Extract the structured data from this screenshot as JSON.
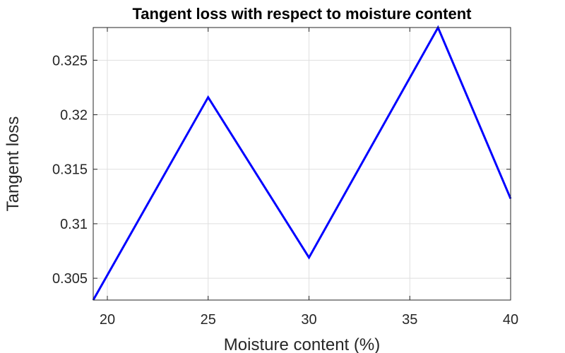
{
  "chart_data": {
    "type": "line",
    "title": "Tangent loss with respect to moisture content",
    "xlabel": "Moisture content (%)",
    "ylabel": "Tangent loss",
    "xlim": [
      19.3,
      40
    ],
    "ylim": [
      0.303,
      0.328
    ],
    "xticks": [
      "20",
      "25",
      "30",
      "35",
      "40"
    ],
    "xtick_values": [
      20,
      25,
      30,
      35,
      40
    ],
    "yticks": [
      "0.305",
      "0.31",
      "0.315",
      "0.32",
      "0.325"
    ],
    "ytick_values": [
      0.305,
      0.31,
      0.315,
      0.32,
      0.325
    ],
    "grid": true,
    "series": [
      {
        "color": "#0000ff",
        "x": [
          19.3,
          25,
          30,
          36.4,
          40
        ],
        "y": [
          0.303,
          0.3216,
          0.3069,
          0.328,
          0.3123
        ]
      }
    ]
  }
}
